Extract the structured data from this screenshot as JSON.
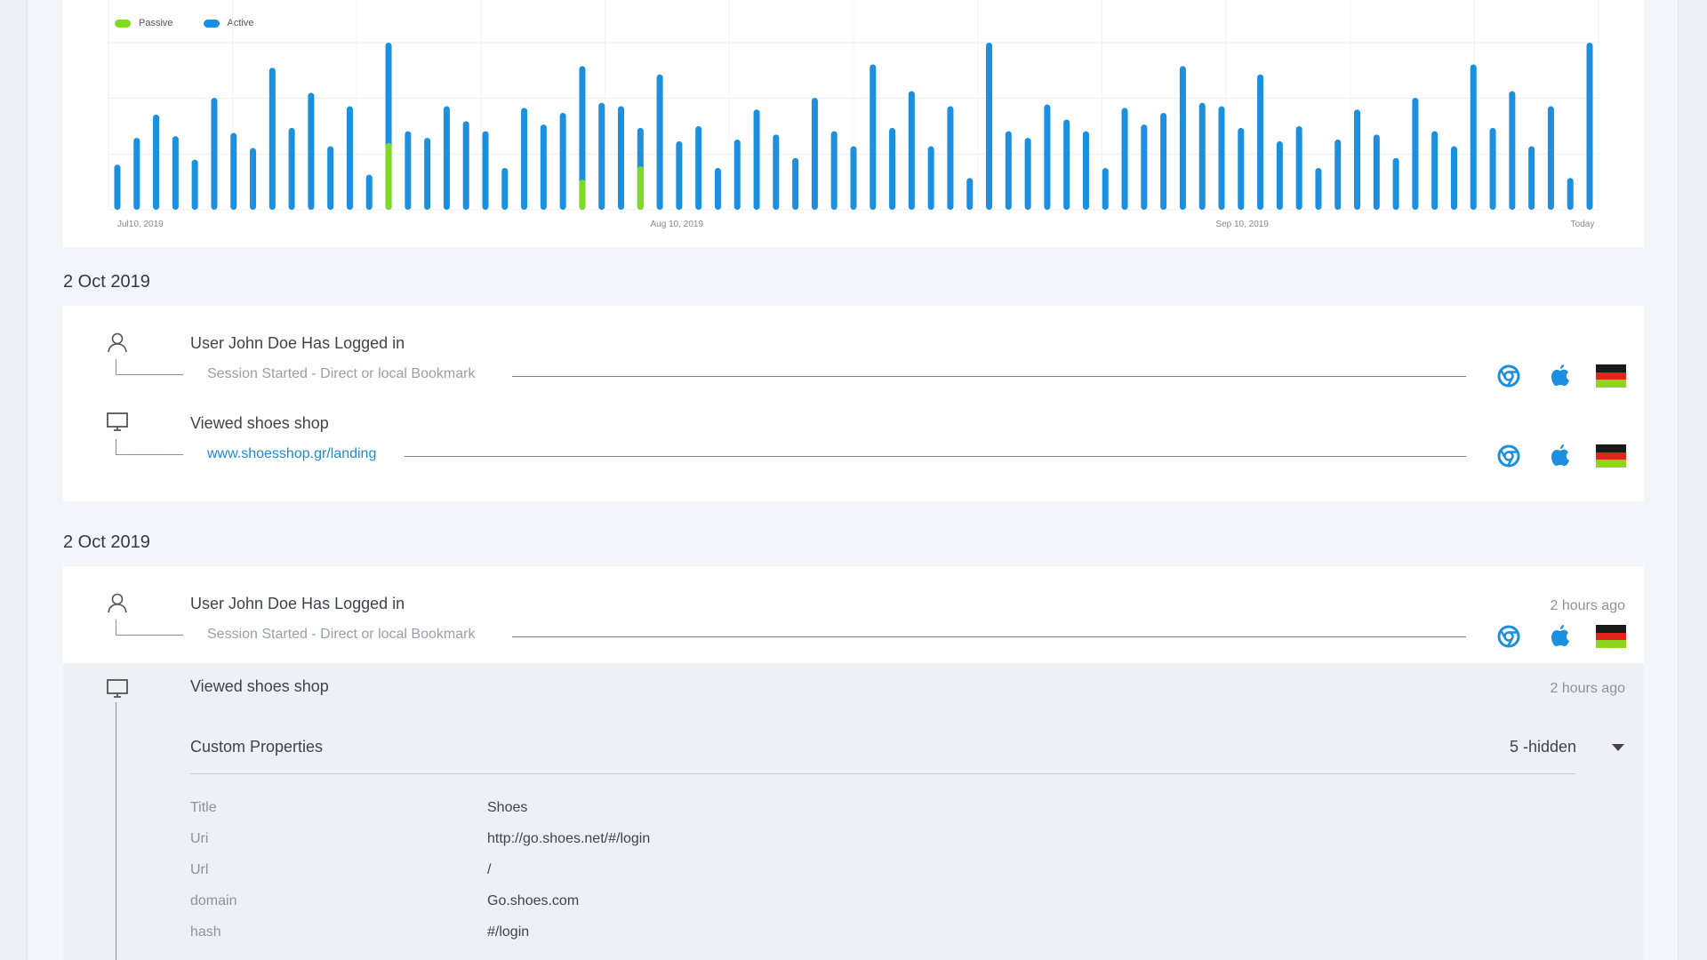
{
  "chart": {
    "legend": [
      {
        "label": "Passive",
        "color": "#7ddc1f"
      },
      {
        "label": "Active",
        "color": "#1b8fe0"
      }
    ],
    "x_tick_labels": [
      "Jul10, 2019",
      "Aug 10, 2019",
      "Sep 10, 2019",
      "Today"
    ]
  },
  "chart_data": {
    "type": "bar",
    "series": [
      {
        "name": "Active",
        "color": "#1b8fe0",
        "values": [
          27,
          43,
          57,
          44,
          30,
          67,
          46,
          37,
          85,
          49,
          70,
          38,
          62,
          21,
          100,
          47,
          43,
          62,
          53,
          47,
          25,
          61,
          51,
          58,
          86,
          64,
          62,
          49,
          81,
          41,
          50,
          25,
          42,
          60,
          45,
          31,
          67,
          47,
          38,
          87,
          49,
          71,
          38,
          62,
          19,
          100,
          47,
          43,
          63,
          54,
          47,
          25,
          61,
          51,
          58,
          86,
          64,
          62,
          49,
          81,
          41,
          50,
          25,
          42,
          60,
          45,
          31,
          67,
          47,
          38,
          87,
          49,
          71,
          38,
          62,
          19,
          100
        ]
      },
      {
        "name": "Passive",
        "color": "#7ddc1f",
        "values": [
          0,
          0,
          0,
          0,
          0,
          0,
          0,
          0,
          0,
          0,
          0,
          0,
          0,
          0,
          40,
          0,
          0,
          0,
          0,
          0,
          0,
          0,
          0,
          0,
          18,
          0,
          0,
          26,
          0,
          0,
          0,
          0,
          0,
          0,
          0,
          0,
          0,
          0,
          0,
          0,
          0,
          0,
          0,
          0,
          0,
          0,
          0,
          0,
          0,
          0,
          0,
          0,
          0,
          0,
          0,
          0,
          0,
          0,
          0,
          0,
          0,
          0,
          0,
          0,
          0,
          0,
          0,
          0,
          0,
          0,
          0,
          0,
          0,
          0,
          0,
          0,
          0
        ]
      }
    ],
    "x_labels": [
      "Jul10, 2019",
      "Aug 10, 2019",
      "Sep 10, 2019",
      "Today"
    ],
    "ylim": [
      0,
      100
    ],
    "grid": true,
    "legend_position": "top-left"
  },
  "sections": [
    {
      "date": "2 Oct 2019",
      "events": [
        {
          "icon": "user-icon",
          "title": "User John Doe Has Logged in",
          "subtitle": "Session Started - Direct or local Bookmark",
          "time": ""
        },
        {
          "icon": "monitor-icon",
          "title": "Viewed shoes shop",
          "subtitle": "www.shoesshop.gr/landing",
          "time": ""
        }
      ]
    },
    {
      "date": "2 Oct 2019",
      "events": [
        {
          "icon": "user-icon",
          "title": "User John Doe Has Logged in",
          "subtitle": "Session Started - Direct or local Bookmark",
          "time": "2 hours ago"
        },
        {
          "icon": "monitor-icon",
          "title": "Viewed shoes shop",
          "subtitle": "",
          "time": "2 hours ago"
        }
      ]
    }
  ],
  "custom_properties": {
    "header": "Custom Properties",
    "hidden_count": "5 -hidden",
    "rows": [
      {
        "key": "Title",
        "value": "Shoes"
      },
      {
        "key": "Uri",
        "value": "http://go.shoes.net/#/login"
      },
      {
        "key": "Url",
        "value": "/"
      },
      {
        "key": "domain",
        "value": "Go.shoes.com"
      },
      {
        "key": "hash",
        "value": "#/login"
      }
    ]
  },
  "icons": {
    "browser": "chrome-icon",
    "os": "apple-icon",
    "country": "germany-flag-icon"
  },
  "colors": {
    "accent": "#1b8fe0",
    "passive": "#7ddc1f",
    "link": "#1f8ad6"
  }
}
